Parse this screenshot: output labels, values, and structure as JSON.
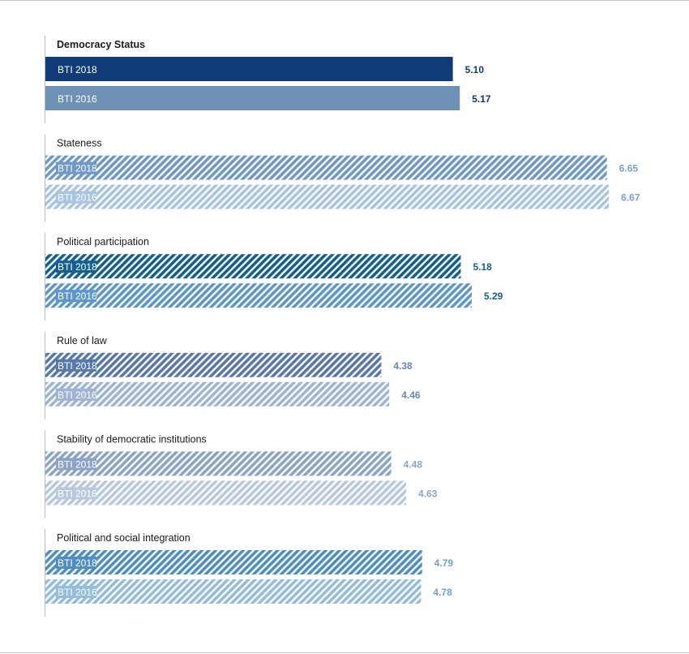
{
  "chart_data": {
    "type": "bar",
    "orientation": "horizontal",
    "categories": [
      "Democracy Status",
      "Stateness",
      "Political participation",
      "Rule of law",
      "Stability of democratic institutions",
      "Political and social integration"
    ],
    "series": [
      {
        "name": "BTI 2018",
        "values": [
          5.1,
          6.65,
          5.18,
          4.38,
          4.48,
          4.79
        ]
      },
      {
        "name": "BTI 2016",
        "values": [
          5.17,
          6.67,
          5.29,
          4.46,
          4.63,
          4.78
        ]
      }
    ],
    "value_labels": [
      [
        "5.10",
        "5.17"
      ],
      [
        "6.65",
        "6.67"
      ],
      [
        "5.18",
        "5.29"
      ],
      [
        "4.38",
        "4.46"
      ],
      [
        "4.48",
        "4.63"
      ],
      [
        "4.79",
        "4.78"
      ]
    ],
    "title": "",
    "xlabel": "",
    "ylabel": "",
    "xlim": [
      1,
      10
    ],
    "grid": false,
    "legend": "none",
    "colors": {
      "Democracy Status": {
        "bti2018": "#0f3c78",
        "bti2016": "#6e91b6",
        "value": "#0f3c78"
      },
      "Stateness": {
        "bti2018": "#6e98c8",
        "bti2016": "#a9c4e2",
        "value": "#7aa0cd"
      },
      "Political participation": {
        "bti2018": "#125f91",
        "bti2016": "#5d96c8",
        "value": "#125f91"
      },
      "Rule of law": {
        "bti2018": "#5678ad",
        "bti2016": "#9fb4d5",
        "value": "#6785b8"
      },
      "Stability of democratic institutions": {
        "bti2018": "#8aa3c6",
        "bti2016": "#b9c8dd",
        "value": "#8aa3c6"
      },
      "Political and social integration": {
        "bti2018": "#4d8fc4",
        "bti2016": "#93bcdd",
        "value": "#6ca0cd"
      }
    },
    "hatched": [
      false,
      true,
      true,
      true,
      true,
      true
    ]
  }
}
